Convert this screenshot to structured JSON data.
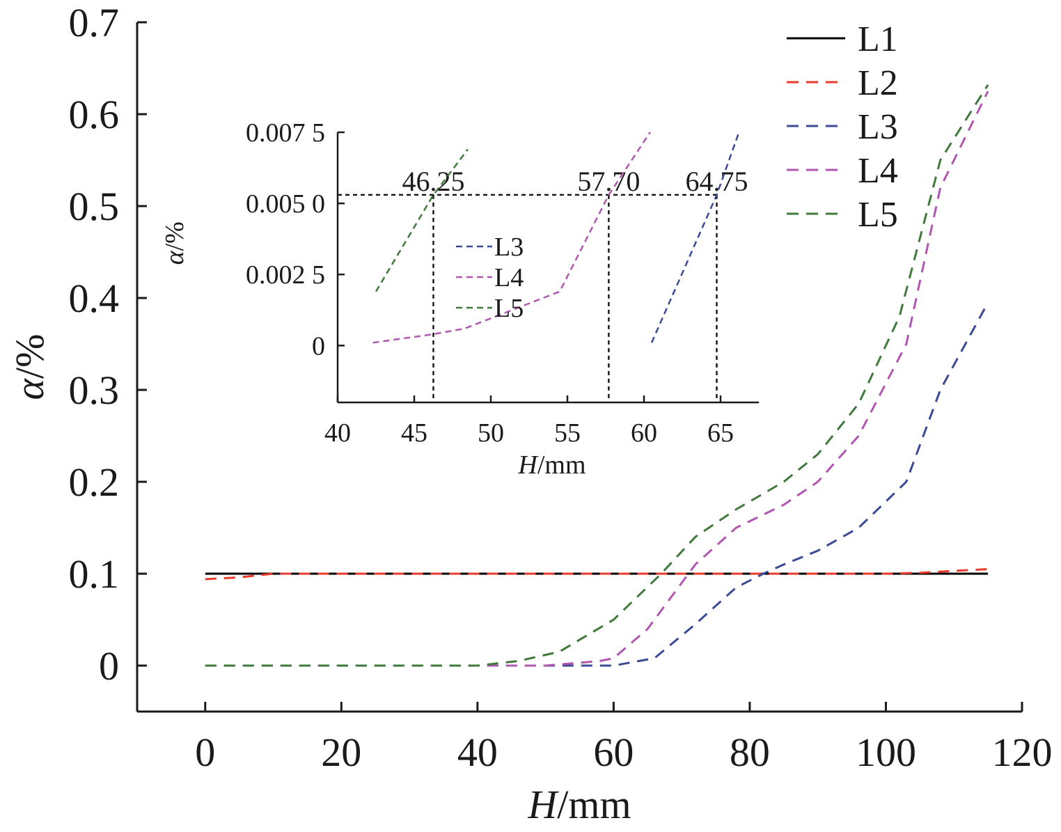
{
  "chart_data": [
    {
      "type": "line",
      "xlabel_italic": "H",
      "xlabel_unit": "/mm",
      "ylabel_italic": "α",
      "ylabel_unit": "/%",
      "xlim": [
        -10,
        120
      ],
      "ylim": [
        -0.05,
        0.7
      ],
      "x_ticks": [
        0,
        20,
        40,
        60,
        80,
        100,
        120
      ],
      "x_tick_labels": [
        "0",
        "20",
        "40",
        "60",
        "80",
        "100",
        "120"
      ],
      "y_ticks": [
        0,
        0.1,
        0.2,
        0.3,
        0.4,
        0.5,
        0.6,
        0.7
      ],
      "y_tick_labels": [
        "0",
        "0.1",
        "0.2",
        "0.3",
        "0.4",
        "0.5",
        "0.6",
        "0.7"
      ],
      "legend_position": "top-right",
      "series": [
        {
          "name": "L1",
          "color": "#000000",
          "dash": "solid",
          "x": [
            0,
            10,
            20,
            40,
            60,
            80,
            100,
            115
          ],
          "y": [
            0.1,
            0.1,
            0.1,
            0.1,
            0.1,
            0.1,
            0.1,
            0.1
          ]
        },
        {
          "name": "L2",
          "color": "#e8392b",
          "dash": "dashed",
          "x": [
            0,
            5,
            10,
            20,
            40,
            60,
            80,
            100,
            105,
            110,
            115
          ],
          "y": [
            0.094,
            0.096,
            0.1,
            0.1,
            0.1,
            0.1,
            0.1,
            0.1,
            0.101,
            0.103,
            0.105
          ]
        },
        {
          "name": "L3",
          "color": "#3a4a94",
          "dash": "dashed",
          "x": [
            0,
            20,
            40,
            50,
            60,
            66,
            72,
            78,
            82,
            85,
            90,
            96,
            103,
            108,
            115
          ],
          "y": [
            0,
            0,
            0,
            0,
            0,
            0.008,
            0.045,
            0.085,
            0.1,
            0.11,
            0.125,
            0.15,
            0.2,
            0.3,
            0.395
          ]
        },
        {
          "name": "L4",
          "color": "#b058b0",
          "dash": "dashed",
          "x": [
            0,
            20,
            40,
            50,
            58,
            60,
            65,
            72,
            78,
            85,
            90,
            96,
            103,
            108,
            115
          ],
          "y": [
            0,
            0,
            0,
            0,
            0.005,
            0.008,
            0.04,
            0.11,
            0.15,
            0.175,
            0.2,
            0.25,
            0.35,
            0.52,
            0.625
          ]
        },
        {
          "name": "L5",
          "color": "#3f7a3c",
          "dash": "dashed",
          "x": [
            0,
            20,
            40,
            46,
            52,
            60,
            67,
            72,
            78,
            85,
            90,
            96,
            102,
            108,
            115
          ],
          "y": [
            0,
            0,
            0,
            0.005,
            0.015,
            0.05,
            0.1,
            0.14,
            0.17,
            0.2,
            0.23,
            0.285,
            0.38,
            0.55,
            0.632
          ]
        }
      ]
    },
    {
      "type": "line",
      "xlabel_italic": "H",
      "xlabel_unit": "/mm",
      "ylabel_italic": "α",
      "ylabel_unit": "/%",
      "xlim": [
        40,
        67.5
      ],
      "ylim": [
        -0.002,
        0.0075
      ],
      "x_ticks": [
        40,
        45,
        50,
        55,
        60,
        65
      ],
      "x_tick_labels": [
        "40",
        "45",
        "50",
        "55",
        "60",
        "65"
      ],
      "y_ticks": [
        0,
        0.0025,
        0.005,
        0.0075
      ],
      "y_tick_labels": [
        "0",
        "0.002 5",
        "0.005 0",
        "0.007 5"
      ],
      "legend_position": "center-left",
      "reference_y": 0.0053,
      "annotations": [
        {
          "x": 46.25,
          "text": "46.25"
        },
        {
          "x": 57.7,
          "text": "57.70"
        },
        {
          "x": 64.75,
          "text": "64.75"
        }
      ],
      "series": [
        {
          "name": "L3",
          "color": "#3a4a94",
          "dash": "dashed",
          "x": [
            60.5,
            64.75,
            66.2
          ],
          "y": [
            0.0001,
            0.0053,
            0.0075
          ]
        },
        {
          "name": "L4",
          "color": "#b058b0",
          "dash": "dashed",
          "x": [
            42.3,
            46.25,
            48.3,
            54.5,
            57.7,
            60.4
          ],
          "y": [
            0.0001,
            0.0004,
            0.0006,
            0.0019,
            0.0053,
            0.0075
          ]
        },
        {
          "name": "L5",
          "color": "#3f7a3c",
          "dash": "dashed",
          "x": [
            42.5,
            46.25,
            48.5
          ],
          "y": [
            0.0019,
            0.0053,
            0.0069
          ]
        }
      ]
    }
  ]
}
